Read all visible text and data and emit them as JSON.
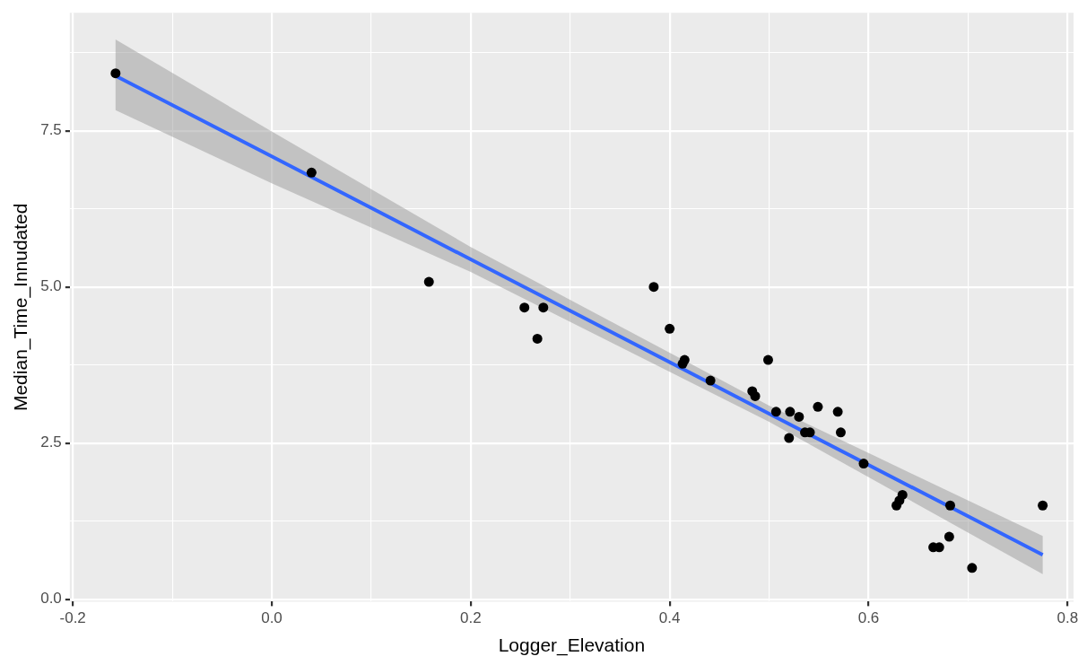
{
  "chart_data": {
    "type": "scatter",
    "xlabel": "Logger_Elevation",
    "ylabel": "Median_Time_Innudated",
    "xlim": [
      -0.203,
      0.806
    ],
    "ylim": [
      -0.04,
      9.39
    ],
    "xticks": [
      -0.2,
      {
        "value": -0.1,
        "label": null
      },
      {
        "value": 0.0,
        "label": "0.0"
      },
      {
        "value": 0.1,
        "label": null
      },
      0.2,
      {
        "value": 0.3,
        "label": null
      },
      0.4,
      {
        "value": 0.5,
        "label": null
      },
      0.6,
      {
        "value": 0.7,
        "label": null
      },
      0.8
    ],
    "yticks": [
      {
        "value": 0,
        "label": "0.0"
      },
      {
        "value": 1.25,
        "label": null
      },
      2.5,
      {
        "value": 3.75,
        "label": null
      },
      {
        "value": 5,
        "label": "5.0"
      },
      {
        "value": 6.25,
        "label": null
      },
      7.5,
      {
        "value": 8.75,
        "label": null
      }
    ],
    "grid": true,
    "series": [
      {
        "marker": "circle",
        "color": "#000000",
        "x": [
          -0.157,
          0.04,
          0.158,
          0.254,
          0.273,
          0.267,
          0.384,
          0.4,
          0.415,
          0.413,
          0.441,
          0.499,
          0.483,
          0.486,
          0.507,
          0.521,
          0.53,
          0.52,
          0.536,
          0.541,
          0.549,
          0.569,
          0.572,
          0.595,
          0.628,
          0.631,
          0.634,
          0.682,
          0.665,
          0.671,
          0.681,
          0.704,
          0.775
        ],
        "values": [
          8.42,
          6.83,
          5.08,
          4.67,
          4.67,
          4.17,
          5.0,
          4.33,
          3.83,
          3.77,
          3.5,
          3.83,
          3.33,
          3.25,
          3.0,
          3.0,
          2.92,
          2.58,
          2.67,
          2.67,
          3.08,
          3.0,
          2.67,
          2.17,
          1.5,
          1.58,
          1.67,
          1.5,
          0.83,
          0.83,
          1.0,
          0.5,
          1.5
        ]
      },
      {
        "type": "line",
        "marker": "none",
        "color": "#3366ff",
        "x": [
          -0.157,
          0.0,
          0.2,
          0.5,
          0.775
        ],
        "values": [
          8.38,
          7.09,
          5.44,
          2.97,
          0.71
        ],
        "lower": [
          7.83,
          6.66,
          5.24,
          2.84,
          0.4
        ],
        "upper": [
          8.96,
          7.49,
          5.64,
          3.1,
          1.01
        ]
      }
    ]
  }
}
